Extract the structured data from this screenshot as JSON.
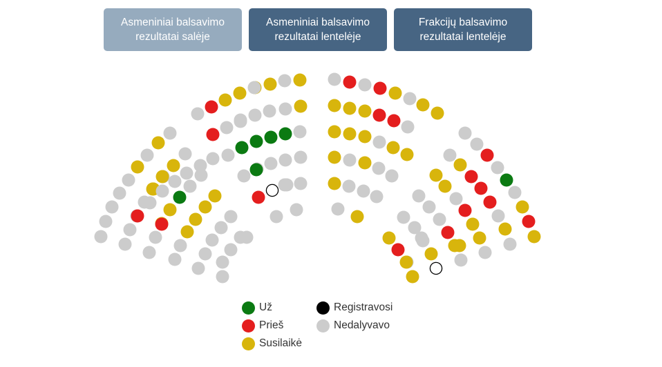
{
  "tabs": [
    {
      "label": "Asmeniniai balsavimo rezultatai salėje",
      "state": "muted"
    },
    {
      "label": "Asmeniniai balsavimo rezultatai lentelėje",
      "state": "active"
    },
    {
      "label": "Frakcijų balsavimo rezultatai lentelėje",
      "state": "active"
    }
  ],
  "colors": {
    "uz": "#0b7a12",
    "pries": "#e41e1e",
    "susilaike": "#d8b50c",
    "registravosi": "#000000",
    "nedalyvavo": "#cccccc"
  },
  "legend": {
    "uz": "Už",
    "pries": "Prieš",
    "susilaike": "Susilaikė",
    "registravosi": "Registravosi",
    "nedalyvavo": "Nedalyvavo"
  },
  "seats": {
    "s1": [
      "n",
      "n",
      "n",
      "n",
      "n",
      "s",
      "n",
      "s",
      "n",
      "n",
      "s",
      "n",
      "s"
    ],
    "s2": [
      "n",
      "n",
      "n",
      "n",
      "s",
      "s",
      "n",
      "n",
      "n",
      "p",
      "s",
      "s"
    ],
    "s3": [
      "n",
      "n",
      "s",
      "s",
      "u",
      "n",
      "n",
      "p",
      "n",
      "n",
      "n"
    ],
    "s4": [
      "n",
      "n",
      "s",
      "s",
      "s",
      "s",
      "s",
      "s",
      "n"
    ],
    "s5": [
      "n",
      "n",
      "n",
      "n",
      "n",
      "s",
      "n",
      "n",
      "s"
    ],
    "s6": [
      "p",
      "n",
      "n",
      "n",
      "n",
      "n",
      "n"
    ],
    "s7": [
      "n",
      "p",
      "n",
      "n",
      "n",
      "n"
    ],
    "s8": [
      "n",
      "p",
      "p",
      "n",
      "n",
      "n"
    ],
    "s9": [
      "n",
      "u",
      "u",
      "u",
      "u",
      "n"
    ],
    "s10": [
      "n",
      "n",
      "n",
      "n",
      "u",
      "n"
    ],
    "s11": [
      "n",
      "n",
      "p",
      "r",
      "n"
    ],
    "s12": [
      "n",
      "n"
    ],
    "s13": [
      "n",
      "p",
      "n",
      "p",
      "s",
      "n",
      "s"
    ],
    "s14": [
      "s",
      "s",
      "s",
      "p",
      "p",
      "n",
      "s"
    ],
    "s15": [
      "s",
      "s",
      "s",
      "n",
      "s",
      "s"
    ],
    "s16": [
      "s",
      "n",
      "s",
      "n",
      "n"
    ],
    "s17": [
      "s",
      "n",
      "n",
      "n"
    ],
    "s18": [
      "n",
      "s"
    ],
    "s19": [
      "n",
      "n",
      "p",
      "n",
      "u",
      "n",
      "s",
      "p",
      "s"
    ],
    "s20": [
      "n",
      "s",
      "p",
      "p",
      "p",
      "n",
      "s",
      "n",
      "s"
    ],
    "s21": [
      "s",
      "s",
      "n",
      "p",
      "s",
      "s",
      "n",
      "n",
      "s"
    ],
    "s22": [
      "n",
      "n",
      "n",
      "p",
      "s",
      "n",
      "s"
    ],
    "s23": [
      "n",
      "n",
      "n",
      "s",
      "r",
      "n"
    ],
    "s24": [
      "s",
      "p",
      "s",
      "s"
    ]
  }
}
